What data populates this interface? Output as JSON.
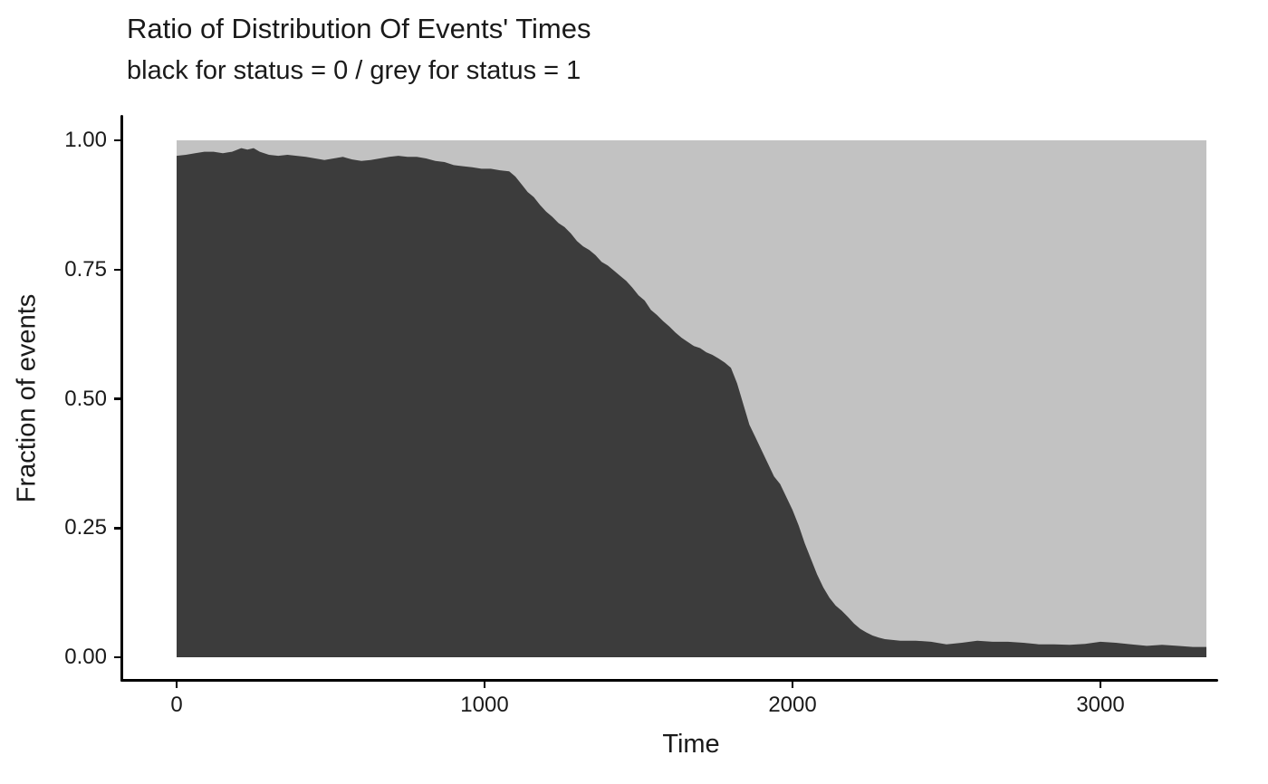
{
  "title": "Ratio of Distribution Of Events' Times",
  "subtitle": "black for status = 0 / grey for status = 1",
  "colors": {
    "status0_fill": "#3C3C3C",
    "status1_fill": "#C2C2C2",
    "axis": "#000000",
    "text": "#1a1a1a",
    "background": "#ffffff"
  },
  "chart_data": {
    "type": "area",
    "title": "Ratio of Distribution Of Events' Times",
    "subtitle": "black for status = 0 / grey for status = 1",
    "xlabel": "Time",
    "ylabel": "Fraction of events",
    "xlim": [
      0,
      3344
    ],
    "ylim": [
      0,
      1
    ],
    "grid": false,
    "legend": "none",
    "x_ticks": [
      {
        "label": "0",
        "value": 0
      },
      {
        "label": "1000",
        "value": 1000
      },
      {
        "label": "2000",
        "value": 2000
      },
      {
        "label": "3000",
        "value": 3000
      }
    ],
    "y_ticks": [
      {
        "label": "0.00",
        "value": 0.0
      },
      {
        "label": "0.25",
        "value": 0.25
      },
      {
        "label": "0.50",
        "value": 0.5
      },
      {
        "label": "0.75",
        "value": 0.75
      },
      {
        "label": "1.00",
        "value": 1.0
      }
    ],
    "series": [
      {
        "name": "status = 0 (black area, fraction of events up to boundary)",
        "fill": "#3C3C3C",
        "x": [
          0,
          30,
          60,
          90,
          120,
          150,
          180,
          210,
          230,
          250,
          270,
          300,
          330,
          360,
          390,
          420,
          450,
          480,
          510,
          540,
          570,
          600,
          630,
          660,
          690,
          720,
          750,
          780,
          810,
          840,
          870,
          900,
          930,
          960,
          990,
          1020,
          1050,
          1080,
          1100,
          1120,
          1140,
          1160,
          1180,
          1200,
          1220,
          1240,
          1260,
          1280,
          1300,
          1320,
          1340,
          1360,
          1380,
          1400,
          1420,
          1440,
          1460,
          1480,
          1500,
          1520,
          1540,
          1560,
          1580,
          1600,
          1620,
          1640,
          1660,
          1680,
          1700,
          1720,
          1740,
          1760,
          1780,
          1800,
          1810,
          1820,
          1830,
          1840,
          1850,
          1860,
          1880,
          1900,
          1920,
          1940,
          1960,
          1980,
          2000,
          2020,
          2040,
          2060,
          2080,
          2100,
          2120,
          2140,
          2160,
          2180,
          2200,
          2220,
          2240,
          2260,
          2280,
          2300,
          2350,
          2400,
          2450,
          2500,
          2550,
          2600,
          2650,
          2700,
          2750,
          2800,
          2850,
          2900,
          2950,
          3000,
          3050,
          3100,
          3150,
          3200,
          3250,
          3300,
          3344
        ],
        "y": [
          0.97,
          0.972,
          0.975,
          0.978,
          0.978,
          0.975,
          0.978,
          0.985,
          0.982,
          0.985,
          0.978,
          0.972,
          0.97,
          0.972,
          0.97,
          0.968,
          0.965,
          0.962,
          0.965,
          0.968,
          0.963,
          0.96,
          0.962,
          0.965,
          0.968,
          0.97,
          0.968,
          0.968,
          0.965,
          0.96,
          0.958,
          0.952,
          0.95,
          0.948,
          0.945,
          0.945,
          0.942,
          0.94,
          0.93,
          0.915,
          0.9,
          0.89,
          0.875,
          0.862,
          0.852,
          0.84,
          0.832,
          0.82,
          0.805,
          0.795,
          0.788,
          0.778,
          0.765,
          0.758,
          0.748,
          0.738,
          0.728,
          0.715,
          0.7,
          0.69,
          0.672,
          0.662,
          0.65,
          0.64,
          0.628,
          0.618,
          0.61,
          0.602,
          0.598,
          0.59,
          0.585,
          0.578,
          0.57,
          0.56,
          0.545,
          0.53,
          0.51,
          0.49,
          0.47,
          0.45,
          0.425,
          0.4,
          0.375,
          0.35,
          0.335,
          0.31,
          0.285,
          0.255,
          0.22,
          0.19,
          0.16,
          0.135,
          0.115,
          0.1,
          0.09,
          0.078,
          0.065,
          0.055,
          0.048,
          0.042,
          0.038,
          0.035,
          0.032,
          0.032,
          0.03,
          0.025,
          0.028,
          0.032,
          0.03,
          0.03,
          0.028,
          0.025,
          0.025,
          0.024,
          0.026,
          0.03,
          0.028,
          0.025,
          0.022,
          0.024,
          0.022,
          0.02,
          0.02
        ]
      },
      {
        "name": "status = 1 (grey area, remainder up to 1.0)",
        "fill": "#C2C2C2"
      }
    ]
  }
}
